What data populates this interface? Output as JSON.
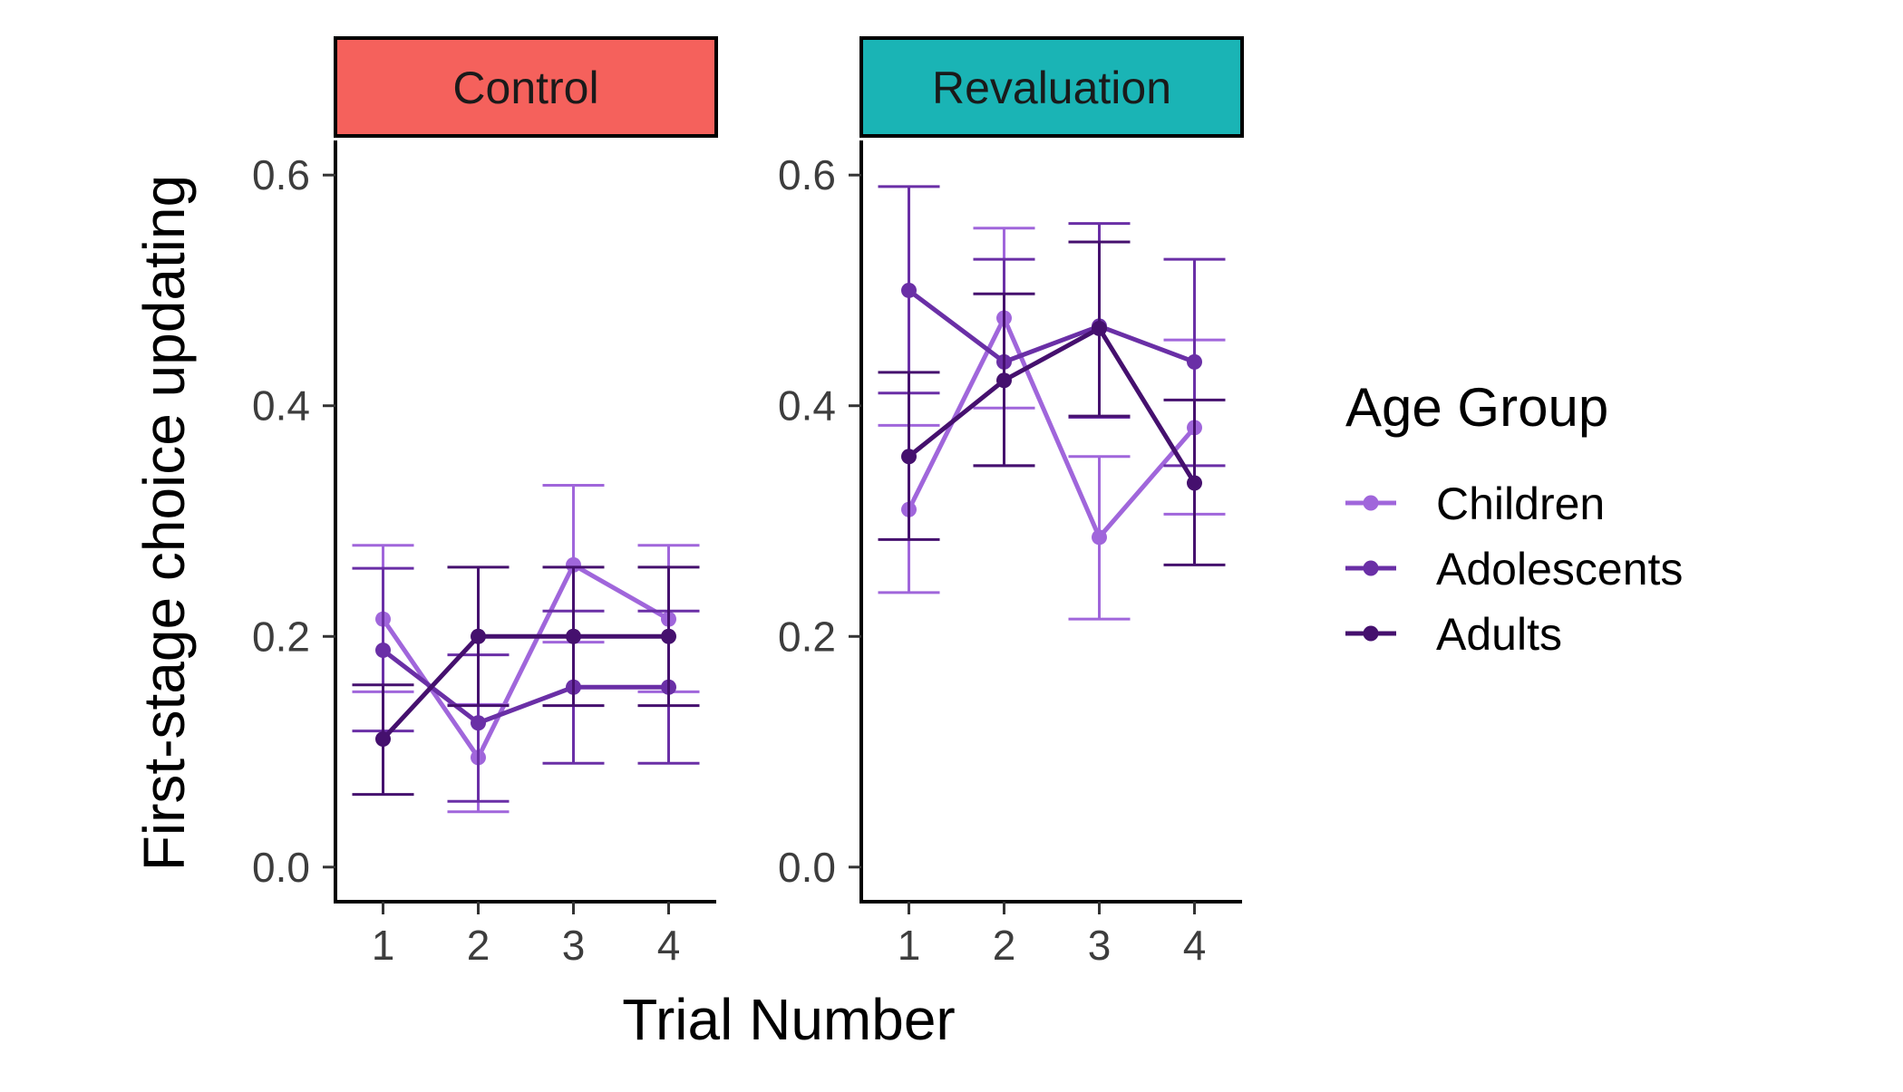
{
  "chart_data": {
    "type": "line",
    "xlabel": "Trial Number",
    "ylabel": "First-stage choice updating",
    "x": [
      1,
      2,
      3,
      4
    ],
    "x_ticks": [
      "1",
      "2",
      "3",
      "4"
    ],
    "ylim": [
      -0.03,
      0.63
    ],
    "y_ticks": [
      "0.0",
      "0.2",
      "0.4",
      "0.6"
    ],
    "y_tick_values": [
      0.0,
      0.2,
      0.4,
      0.6
    ],
    "grid": false,
    "legend": {
      "title": "Age Group",
      "placement": "right",
      "items": [
        "Children",
        "Adolescents",
        "Adults"
      ]
    },
    "colors": {
      "Children": "#a066db",
      "Adolescents": "#6a2fa6",
      "Adults": "#45106e",
      "Control": "#f5615c",
      "Revaluation": "#1ab4b5"
    },
    "panels": [
      {
        "label": "Control",
        "series": [
          {
            "name": "Children",
            "values": [
              0.215,
              0.095,
              0.262,
              0.215
            ],
            "lower": [
              0.152,
              0.048,
              0.195,
              0.152
            ],
            "upper": [
              0.279,
              0.141,
              0.331,
              0.279
            ]
          },
          {
            "name": "Adolescents",
            "values": [
              0.188,
              0.125,
              0.156,
              0.156
            ],
            "lower": [
              0.118,
              0.057,
              0.09,
              0.09
            ],
            "upper": [
              0.259,
              0.184,
              0.222,
              0.222
            ]
          },
          {
            "name": "Adults",
            "values": [
              0.111,
              0.2,
              0.2,
              0.2
            ],
            "lower": [
              0.063,
              0.14,
              0.14,
              0.14
            ],
            "upper": [
              0.158,
              0.26,
              0.26,
              0.26
            ]
          }
        ]
      },
      {
        "label": "Revaluation",
        "series": [
          {
            "name": "Children",
            "values": [
              0.31,
              0.476,
              0.286,
              0.381
            ],
            "lower": [
              0.238,
              0.398,
              0.215,
              0.306
            ],
            "upper": [
              0.383,
              0.554,
              0.356,
              0.457
            ]
          },
          {
            "name": "Adolescents",
            "values": [
              0.5,
              0.438,
              0.469,
              0.438
            ],
            "lower": [
              0.411,
              0.348,
              0.39,
              0.348
            ],
            "upper": [
              0.59,
              0.527,
              0.558,
              0.527
            ]
          },
          {
            "name": "Adults",
            "values": [
              0.356,
              0.422,
              0.467,
              0.333
            ],
            "lower": [
              0.284,
              0.348,
              0.391,
              0.262
            ],
            "upper": [
              0.429,
              0.497,
              0.542,
              0.405
            ]
          }
        ]
      }
    ]
  }
}
